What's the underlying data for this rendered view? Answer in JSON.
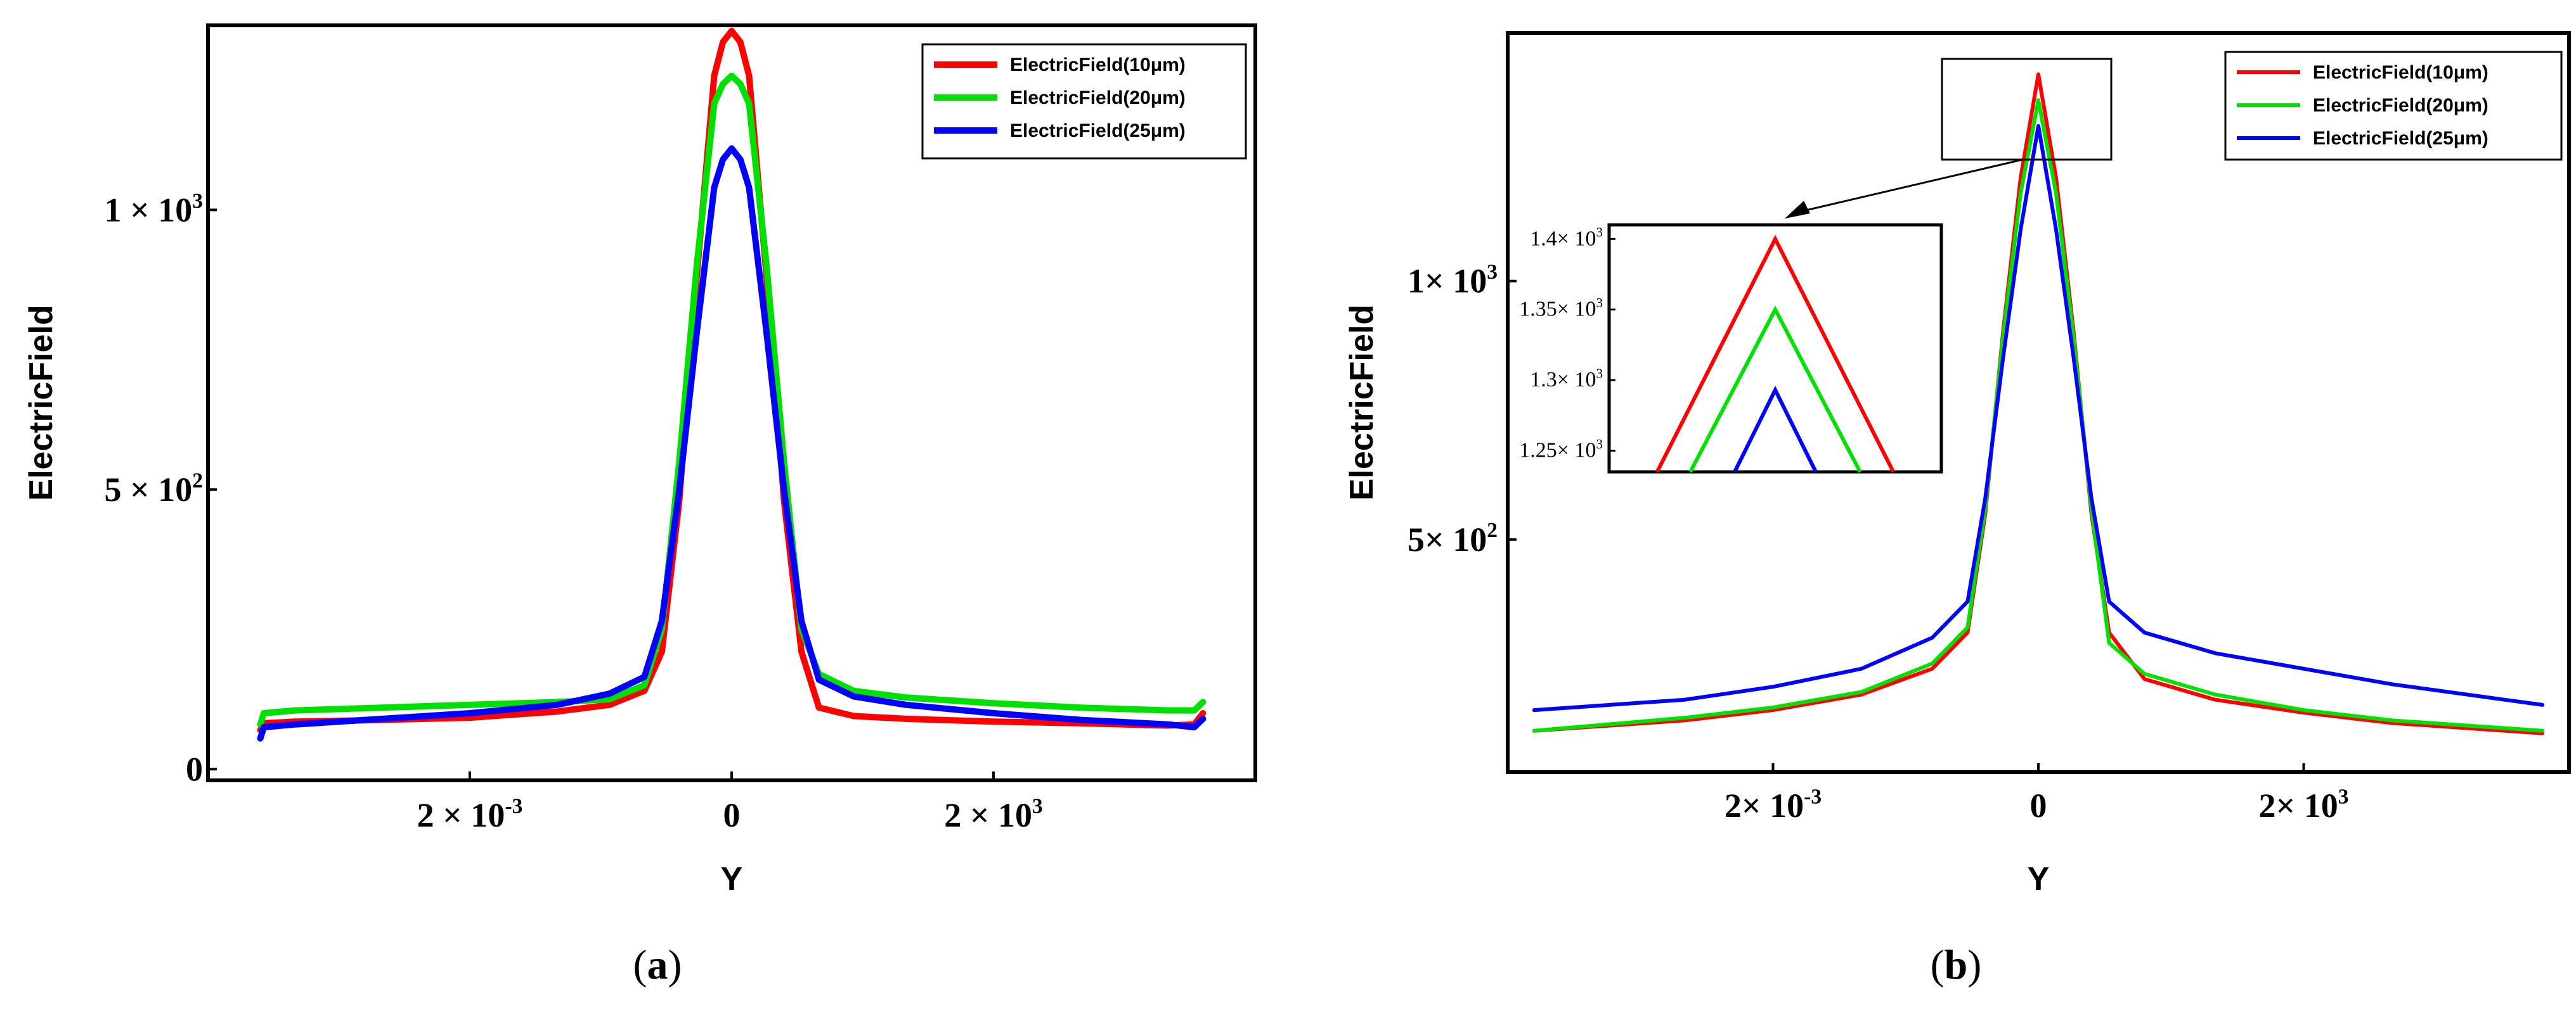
{
  "panels": [
    {
      "caption_label": "a",
      "chart_data": {
        "type": "line",
        "title": "",
        "xlabel": "Y",
        "ylabel": "ElectricField",
        "xlim": [
          -3.0,
          3.0
        ],
        "ylim": [
          -20,
          1330
        ],
        "x_ticks": [
          {
            "value": -1.5,
            "label_main": "2 × 10",
            "label_sup": "-3"
          },
          {
            "value": 0,
            "label_main": "0",
            "label_sup": ""
          },
          {
            "value": 1.5,
            "label_main": "2 × 10",
            "label_sup": "3"
          }
        ],
        "y_ticks": [
          {
            "value": 0,
            "label_main": "0",
            "label_sup": ""
          },
          {
            "value": 500,
            "label_main": "5 × 10",
            "label_sup": "2"
          },
          {
            "value": 1000,
            "label_main": "1 × 10",
            "label_sup": "3"
          }
        ],
        "legend_position": "top-right",
        "series": [
          {
            "name": "ElectricField(10μm)",
            "color": "#ff0000",
            "x": [
              -2.7,
              -2.68,
              -2.5,
              -2.0,
              -1.5,
              -1.0,
              -0.7,
              -0.5,
              -0.4,
              -0.3,
              -0.2,
              -0.1,
              -0.05,
              0.0,
              0.05,
              0.1,
              0.2,
              0.3,
              0.4,
              0.5,
              0.7,
              1.0,
              1.5,
              2.0,
              2.5,
              2.65,
              2.7
            ],
            "y": [
              70,
              82,
              85,
              88,
              92,
              103,
              115,
              140,
              210,
              480,
              880,
              1240,
              1300,
              1320,
              1300,
              1240,
              880,
              480,
              210,
              110,
              95,
              90,
              85,
              82,
              78,
              80,
              100
            ]
          },
          {
            "name": "ElectricField(20μm)",
            "color": "#00e000",
            "x": [
              -2.7,
              -2.68,
              -2.5,
              -2.0,
              -1.5,
              -1.0,
              -0.7,
              -0.5,
              -0.4,
              -0.3,
              -0.2,
              -0.1,
              -0.05,
              0.0,
              0.05,
              0.1,
              0.2,
              0.3,
              0.4,
              0.5,
              0.7,
              1.0,
              1.5,
              2.0,
              2.5,
              2.65,
              2.7
            ],
            "y": [
              80,
              100,
              105,
              110,
              115,
              120,
              125,
              150,
              250,
              550,
              900,
              1190,
              1225,
              1240,
              1225,
              1190,
              900,
              550,
              250,
              170,
              140,
              128,
              118,
              110,
              105,
              105,
              120
            ]
          },
          {
            "name": "ElectricField(25μm)",
            "color": "#0000ff",
            "x": [
              -2.7,
              -2.68,
              -2.5,
              -2.0,
              -1.5,
              -1.0,
              -0.7,
              -0.5,
              -0.4,
              -0.3,
              -0.2,
              -0.1,
              -0.05,
              0.0,
              0.05,
              0.1,
              0.2,
              0.3,
              0.4,
              0.5,
              0.7,
              1.0,
              1.5,
              2.0,
              2.5,
              2.65,
              2.7
            ],
            "y": [
              55,
              75,
              80,
              90,
              100,
              115,
              135,
              165,
              265,
              500,
              780,
              1040,
              1090,
              1110,
              1090,
              1040,
              780,
              500,
              265,
              160,
              130,
              115,
              100,
              88,
              80,
              75,
              90
            ]
          }
        ]
      }
    },
    {
      "caption_label": "b",
      "chart_data": {
        "type": "line",
        "title": "",
        "xlabel": "Y",
        "ylabel": "ElectricField",
        "xlim": [
          -3.0,
          3.0
        ],
        "ylim": [
          50,
          1480
        ],
        "x_ticks": [
          {
            "value": -1.5,
            "label_main": "2× 10",
            "label_sup": "-3"
          },
          {
            "value": 0,
            "label_main": "0",
            "label_sup": ""
          },
          {
            "value": 1.5,
            "label_main": "2× 10",
            "label_sup": "3"
          }
        ],
        "y_ticks": [
          {
            "value": 500,
            "label_main": "5× 10",
            "label_sup": "2"
          },
          {
            "value": 1000,
            "label_main": "1× 10",
            "label_sup": "3"
          }
        ],
        "legend_position": "top-right",
        "series": [
          {
            "name": "ElectricField(10μm)",
            "color": "#ff0000",
            "x": [
              -2.85,
              -2.0,
              -1.5,
              -1.0,
              -0.6,
              -0.4,
              -0.3,
              -0.2,
              -0.1,
              0.0,
              0.1,
              0.2,
              0.3,
              0.4,
              0.6,
              1.0,
              1.5,
              2.0,
              2.85
            ],
            "y": [
              130,
              150,
              170,
              200,
              250,
              320,
              550,
              900,
              1200,
              1400,
              1200,
              900,
              550,
              320,
              230,
              190,
              165,
              145,
              125
            ]
          },
          {
            "name": "ElectricField(20μm)",
            "color": "#00e000",
            "x": [
              -2.85,
              -2.0,
              -1.5,
              -1.0,
              -0.6,
              -0.4,
              -0.3,
              -0.2,
              -0.1,
              0.0,
              0.1,
              0.2,
              0.3,
              0.4,
              0.6,
              1.0,
              1.5,
              2.0,
              2.85
            ],
            "y": [
              130,
              155,
              175,
              205,
              260,
              330,
              560,
              890,
              1170,
              1350,
              1170,
              890,
              560,
              300,
              240,
              200,
              170,
              150,
              130
            ]
          },
          {
            "name": "ElectricField(25μm)",
            "color": "#0000ff",
            "x": [
              -2.85,
              -2.0,
              -1.5,
              -1.0,
              -0.6,
              -0.4,
              -0.3,
              -0.2,
              -0.1,
              0.0,
              0.1,
              0.2,
              0.3,
              0.4,
              0.6,
              1.0,
              1.5,
              2.0,
              2.85
            ],
            "y": [
              170,
              190,
              215,
              250,
              310,
              380,
              580,
              850,
              1100,
              1300,
              1100,
              850,
              580,
              380,
              320,
              280,
              250,
              220,
              180
            ]
          }
        ],
        "inset": {
          "xlim": [
            -0.45,
            0.45
          ],
          "ylim": [
            1235,
            1410
          ],
          "y_ticks": [
            {
              "value": 1250,
              "label_main": "1.25× 10",
              "label_sup": "3"
            },
            {
              "value": 1300,
              "label_main": "1.3× 10",
              "label_sup": "3"
            },
            {
              "value": 1350,
              "label_main": "1.35× 10",
              "label_sup": "3"
            },
            {
              "value": 1400,
              "label_main": "1.4× 10",
              "label_sup": "3"
            }
          ],
          "series": [
            {
              "name": "ElectricField(10μm)",
              "color": "#ff0000",
              "x": [
                -0.32,
                0.0,
                0.32
              ],
              "y": [
                1235,
                1400,
                1235
              ]
            },
            {
              "name": "ElectricField(20μm)",
              "color": "#00e000",
              "x": [
                -0.23,
                0.0,
                0.23
              ],
              "y": [
                1235,
                1350,
                1235
              ]
            },
            {
              "name": "ElectricField(25μm)",
              "color": "#0000ff",
              "x": [
                -0.11,
                0.0,
                0.11
              ],
              "y": [
                1235,
                1293,
                1235
              ]
            }
          ]
        }
      }
    }
  ]
}
